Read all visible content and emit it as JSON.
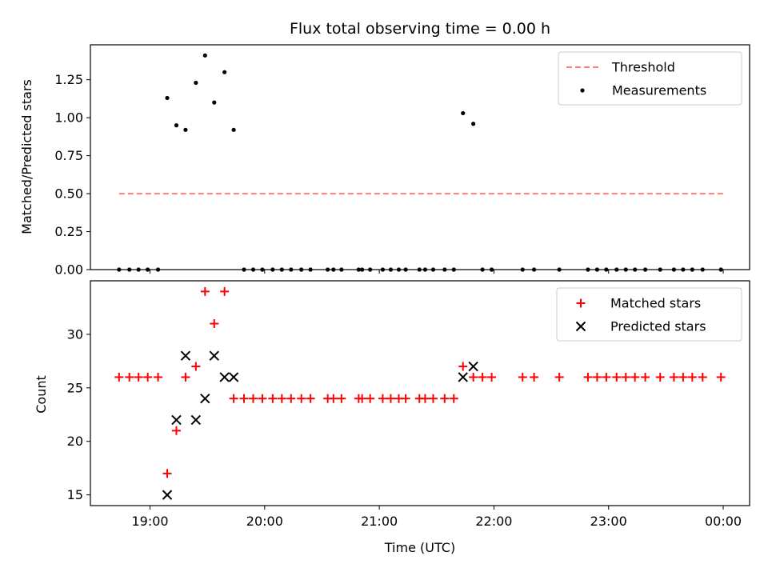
{
  "chart_data": {
    "title": "Flux total observing time = 0.00 h",
    "xlabel": "Time (UTC)",
    "x_unit": "hours UTC (24+ = next day)",
    "xlim": [
      18.48,
      24.23
    ],
    "x_ticks": [
      {
        "value": 19,
        "label": "19:00"
      },
      {
        "value": 20,
        "label": "20:00"
      },
      {
        "value": 21,
        "label": "21:00"
      },
      {
        "value": 22,
        "label": "22:00"
      },
      {
        "value": 23,
        "label": "23:00"
      },
      {
        "value": 24,
        "label": "00:00"
      }
    ],
    "panels": [
      {
        "type": "scatter",
        "ylabel": "Matched/Predicted stars",
        "ylim": [
          0.0,
          1.48
        ],
        "y_ticks": [
          "0.00",
          "0.25",
          "0.50",
          "0.75",
          "1.00",
          "1.25"
        ],
        "legend_position": "upper right",
        "threshold": {
          "name": "Threshold",
          "value": 0.5,
          "x_range": [
            18.73,
            24.0
          ],
          "color": "#ff7f7f",
          "style": "dashed"
        },
        "series": [
          {
            "name": "Measurements",
            "marker": "dot",
            "color": "#000000",
            "points": [
              [
                18.73,
                0
              ],
              [
                18.82,
                0
              ],
              [
                18.9,
                0
              ],
              [
                18.98,
                0
              ],
              [
                19.07,
                0
              ],
              [
                19.15,
                1.13
              ],
              [
                19.23,
                0.95
              ],
              [
                19.31,
                0.92
              ],
              [
                19.4,
                1.23
              ],
              [
                19.48,
                1.41
              ],
              [
                19.56,
                1.1
              ],
              [
                19.65,
                1.3
              ],
              [
                19.73,
                0.92
              ],
              [
                19.82,
                0
              ],
              [
                19.9,
                0
              ],
              [
                19.98,
                0
              ],
              [
                20.07,
                0
              ],
              [
                20.15,
                0
              ],
              [
                20.23,
                0
              ],
              [
                20.32,
                0
              ],
              [
                20.4,
                0
              ],
              [
                20.55,
                0
              ],
              [
                20.6,
                0
              ],
              [
                20.67,
                0
              ],
              [
                20.82,
                0
              ],
              [
                20.85,
                0
              ],
              [
                20.92,
                0
              ],
              [
                21.03,
                0
              ],
              [
                21.1,
                0
              ],
              [
                21.17,
                0
              ],
              [
                21.23,
                0
              ],
              [
                21.35,
                0
              ],
              [
                21.4,
                0
              ],
              [
                21.47,
                0
              ],
              [
                21.57,
                0
              ],
              [
                21.65,
                0
              ],
              [
                21.73,
                1.03
              ],
              [
                21.82,
                0.96
              ],
              [
                21.9,
                0
              ],
              [
                21.98,
                0
              ],
              [
                22.25,
                0
              ],
              [
                22.35,
                0
              ],
              [
                22.57,
                0
              ],
              [
                22.82,
                0
              ],
              [
                22.9,
                0
              ],
              [
                22.98,
                0
              ],
              [
                23.07,
                0
              ],
              [
                23.15,
                0
              ],
              [
                23.23,
                0
              ],
              [
                23.32,
                0
              ],
              [
                23.45,
                0
              ],
              [
                23.57,
                0
              ],
              [
                23.65,
                0
              ],
              [
                23.73,
                0
              ],
              [
                23.82,
                0
              ],
              [
                23.98,
                0
              ]
            ]
          }
        ]
      },
      {
        "type": "scatter",
        "ylabel": "Count",
        "ylim": [
          14.0,
          35.0
        ],
        "y_ticks": [
          "15",
          "20",
          "25",
          "30"
        ],
        "legend_position": "upper right",
        "series": [
          {
            "name": "Matched stars",
            "marker": "plus",
            "color": "#ff0000",
            "points": [
              [
                18.73,
                26
              ],
              [
                18.82,
                26
              ],
              [
                18.9,
                26
              ],
              [
                18.98,
                26
              ],
              [
                19.07,
                26
              ],
              [
                19.15,
                17
              ],
              [
                19.23,
                21
              ],
              [
                19.31,
                26
              ],
              [
                19.4,
                27
              ],
              [
                19.48,
                34
              ],
              [
                19.56,
                31
              ],
              [
                19.65,
                34
              ],
              [
                19.73,
                24
              ],
              [
                19.82,
                24
              ],
              [
                19.9,
                24
              ],
              [
                19.98,
                24
              ],
              [
                20.07,
                24
              ],
              [
                20.15,
                24
              ],
              [
                20.23,
                24
              ],
              [
                20.32,
                24
              ],
              [
                20.4,
                24
              ],
              [
                20.55,
                24
              ],
              [
                20.6,
                24
              ],
              [
                20.67,
                24
              ],
              [
                20.82,
                24
              ],
              [
                20.85,
                24
              ],
              [
                20.92,
                24
              ],
              [
                21.03,
                24
              ],
              [
                21.1,
                24
              ],
              [
                21.17,
                24
              ],
              [
                21.23,
                24
              ],
              [
                21.35,
                24
              ],
              [
                21.4,
                24
              ],
              [
                21.47,
                24
              ],
              [
                21.57,
                24
              ],
              [
                21.65,
                24
              ],
              [
                21.73,
                27
              ],
              [
                21.82,
                26
              ],
              [
                21.9,
                26
              ],
              [
                21.98,
                26
              ],
              [
                22.25,
                26
              ],
              [
                22.35,
                26
              ],
              [
                22.57,
                26
              ],
              [
                22.82,
                26
              ],
              [
                22.9,
                26
              ],
              [
                22.98,
                26
              ],
              [
                23.07,
                26
              ],
              [
                23.15,
                26
              ],
              [
                23.23,
                26
              ],
              [
                23.32,
                26
              ],
              [
                23.45,
                26
              ],
              [
                23.57,
                26
              ],
              [
                23.65,
                26
              ],
              [
                23.73,
                26
              ],
              [
                23.82,
                26
              ],
              [
                23.98,
                26
              ]
            ]
          },
          {
            "name": "Predicted stars",
            "marker": "x",
            "color": "#000000",
            "points": [
              [
                19.15,
                15
              ],
              [
                19.23,
                22
              ],
              [
                19.31,
                28
              ],
              [
                19.4,
                22
              ],
              [
                19.48,
                24
              ],
              [
                19.56,
                28
              ],
              [
                19.65,
                26
              ],
              [
                19.73,
                26
              ],
              [
                21.73,
                26
              ],
              [
                21.82,
                27
              ]
            ]
          }
        ]
      }
    ]
  }
}
